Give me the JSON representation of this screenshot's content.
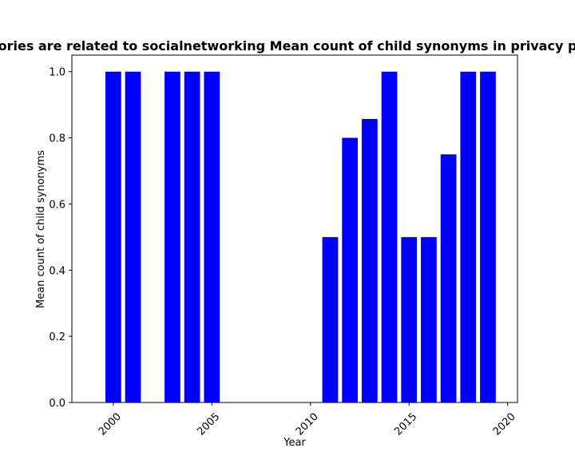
{
  "chart_data": {
    "type": "bar",
    "title": "ories are related to socialnetworking Mean count of child synonyms in privacy p",
    "xlabel": "Year",
    "ylabel": "Mean count of child synonyms",
    "x": [
      2000,
      2001,
      2003,
      2004,
      2005,
      2011,
      2012,
      2013,
      2014,
      2015,
      2016,
      2017,
      2018,
      2019
    ],
    "values": [
      1.0,
      1.0,
      1.0,
      1.0,
      1.0,
      0.5,
      0.8,
      0.857,
      1.0,
      0.5,
      0.5,
      0.75,
      1.0,
      1.0
    ],
    "xlim": [
      1997.9,
      2020.5
    ],
    "ylim": [
      0,
      1.05
    ],
    "xticks": [
      2000,
      2005,
      2010,
      2015,
      2020
    ],
    "yticks": [
      "0.0",
      "0.2",
      "0.4",
      "0.6",
      "0.8",
      "1.0"
    ],
    "bar_color": "#0000ff",
    "grid": false,
    "legend": "none"
  }
}
